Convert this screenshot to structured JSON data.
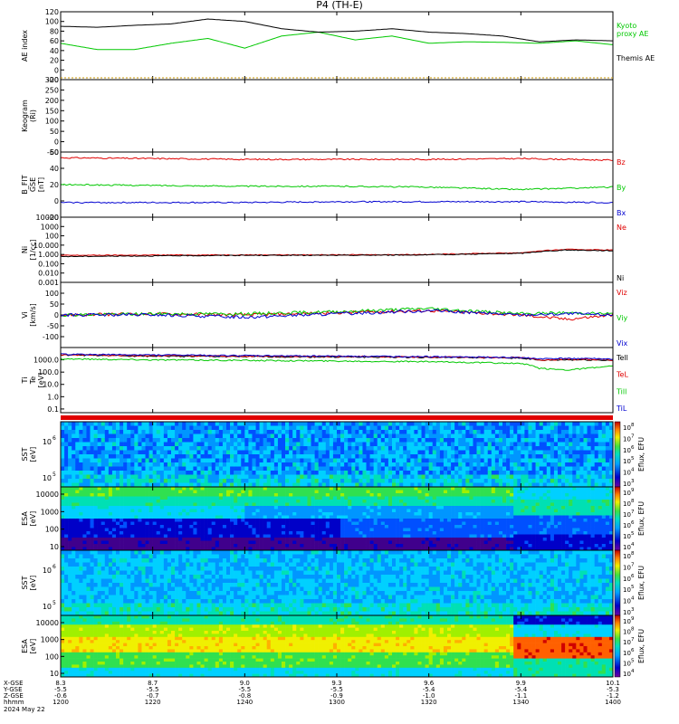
{
  "figure": {
    "title": "P4 (TH-E)",
    "date_label": "2024 May 22",
    "row_labels": [
      "X-GSE",
      "Y-GSE",
      "Z-GSE",
      "hhmm"
    ],
    "columns": [
      {
        "x": "8.3",
        "y": "-5.5",
        "z": "-0.6",
        "t": "1200"
      },
      {
        "x": "8.7",
        "y": "-5.5",
        "z": "-0.7",
        "t": "1220"
      },
      {
        "x": "9.0",
        "y": "-5.5",
        "z": "-0.8",
        "t": "1240"
      },
      {
        "x": "9.3",
        "y": "-5.5",
        "z": "-0.9",
        "t": "1300"
      },
      {
        "x": "9.6",
        "y": "-5.4",
        "z": "-1.0",
        "t": "1320"
      },
      {
        "x": "9.9",
        "y": "-5.4",
        "z": "-1.1",
        "t": "1340"
      },
      {
        "x": "10.1",
        "y": "-5.3",
        "z": "-1.2",
        "t": "1400"
      }
    ]
  },
  "chart_data": [
    {
      "type": "line",
      "ylabel": "AE index",
      "ylim": [
        -20,
        120
      ],
      "yticks": [
        "120",
        "100",
        "80",
        "60",
        "40",
        "20",
        "0",
        "-20"
      ],
      "x": [
        0,
        8,
        16,
        24,
        32,
        40,
        48,
        56,
        64,
        72,
        80,
        88,
        96,
        104,
        112,
        120
      ],
      "series": [
        {
          "name": "Kyoto proxy AE",
          "color": "#00c800",
          "values": [
            55,
            42,
            42,
            55,
            65,
            45,
            70,
            78,
            62,
            70,
            55,
            58,
            57,
            55,
            60,
            52
          ]
        },
        {
          "name": "Themis AE",
          "color": "#000000",
          "values": [
            90,
            88,
            92,
            95,
            105,
            100,
            85,
            78,
            80,
            85,
            78,
            75,
            70,
            58,
            62,
            60
          ]
        }
      ]
    },
    {
      "type": "line",
      "ylabel": "Keogram",
      "ylabel2": "(Ri)",
      "ylim": [
        -50,
        300
      ],
      "yticks": [
        "300",
        "250",
        "200",
        "150",
        "100",
        "50",
        "0",
        "-50"
      ],
      "series": []
    },
    {
      "type": "line",
      "ylabel": "B_FIT",
      "ylabel2": "GSE",
      "ylabel3": "[nT]",
      "ylim": [
        -20,
        60
      ],
      "yticks": [
        "60",
        "40",
        "20",
        "0",
        "-20"
      ],
      "x": [
        0,
        20,
        40,
        60,
        80,
        100,
        120
      ],
      "series": [
        {
          "name": "Bz",
          "color": "#e00000",
          "values": [
            53,
            52,
            51,
            51,
            51,
            52,
            50
          ]
        },
        {
          "name": "By",
          "color": "#00c800",
          "values": [
            20,
            19,
            18,
            18,
            17,
            14,
            17
          ]
        },
        {
          "name": "Bx",
          "color": "#0000d0",
          "values": [
            -2,
            -2,
            -2,
            -1,
            -1,
            -1,
            -2
          ]
        }
      ]
    },
    {
      "type": "line",
      "ylabel": "Ni",
      "ylabel2": "[1/cc]",
      "yscale": "log",
      "ylim": [
        0.001,
        10000
      ],
      "yticks": [
        "10000",
        "1000",
        "100",
        "10.000",
        "1.000",
        "0.100",
        "0.010",
        "0.001"
      ],
      "x": [
        0,
        20,
        40,
        60,
        80,
        100,
        110,
        120
      ],
      "series": [
        {
          "name": "Ne",
          "color": "#e00000",
          "values": [
            0.8,
            0.85,
            0.9,
            0.9,
            1.0,
            1.5,
            3.5,
            3.0
          ]
        },
        {
          "name": "Ni",
          "color": "#000000",
          "values": [
            0.6,
            0.7,
            0.8,
            0.8,
            0.9,
            1.3,
            3.0,
            2.5
          ]
        }
      ]
    },
    {
      "type": "line",
      "ylabel": "Vi",
      "ylabel2": "[km/s]",
      "ylim": [
        -150,
        150
      ],
      "yticks": [
        "100",
        "50",
        "0",
        "-50",
        "-100"
      ],
      "x": [
        0,
        20,
        40,
        60,
        80,
        100,
        110,
        120
      ],
      "series": [
        {
          "name": "Viz",
          "color": "#e00000",
          "values": [
            0,
            5,
            0,
            10,
            20,
            0,
            -20,
            0
          ]
        },
        {
          "name": "Viy",
          "color": "#00c800",
          "values": [
            0,
            5,
            5,
            15,
            30,
            5,
            10,
            5
          ]
        },
        {
          "name": "Vix",
          "color": "#0000d0",
          "values": [
            0,
            0,
            -10,
            5,
            20,
            0,
            5,
            0
          ]
        }
      ]
    },
    {
      "type": "line",
      "ylabel": "Ti",
      "ylabel2": "Te",
      "ylabel3": "[eV]",
      "yscale": "log",
      "ylim": [
        0.05,
        10000
      ],
      "yticks": [
        "1000.0",
        "100.0",
        "10.0",
        "1.0",
        "0.1"
      ],
      "x": [
        0,
        20,
        40,
        60,
        80,
        100,
        104,
        110,
        114,
        120
      ],
      "series": [
        {
          "name": "Tell",
          "color": "#000000",
          "values": [
            2500,
            2000,
            1800,
            1700,
            1600,
            1400,
            900,
            1000,
            1000,
            900
          ]
        },
        {
          "name": "TeL",
          "color": "#e00000",
          "values": [
            2600,
            2200,
            2000,
            1900,
            1700,
            1500,
            1000,
            1100,
            1100,
            1000
          ]
        },
        {
          "name": "Till",
          "color": "#00c800",
          "values": [
            1200,
            1000,
            900,
            800,
            700,
            500,
            200,
            150,
            200,
            300
          ]
        },
        {
          "name": "TiL",
          "color": "#0000d0",
          "values": [
            2800,
            2500,
            2200,
            2000,
            1800,
            1500,
            1200,
            1300,
            1300,
            1100
          ]
        }
      ]
    },
    {
      "type": "heatmap",
      "ylabel": "SST",
      "ylabel2": "[eV]",
      "ytick_sups": [
        "6",
        "5"
      ],
      "colorbar_label": "Eflux, EFU",
      "colorbar_sups": [
        "8",
        "7",
        "6",
        "5",
        "4",
        "3"
      ]
    },
    {
      "type": "heatmap",
      "ylabel": "ESA",
      "ylabel2": "[eV]",
      "yticks": [
        "10000",
        "1000",
        "100",
        "10"
      ],
      "colorbar_label": "Eflux, EFU",
      "colorbar_sups": [
        "9",
        "8",
        "7",
        "6",
        "5",
        "4"
      ]
    },
    {
      "type": "heatmap",
      "ylabel": "SST",
      "ylabel2": "[eV]",
      "ytick_sups": [
        "6",
        "5"
      ],
      "colorbar_label": "Eflux, EFU",
      "colorbar_sups": [
        "8",
        "7",
        "6",
        "5",
        "4",
        "3"
      ]
    },
    {
      "type": "heatmap",
      "ylabel": "ESA",
      "ylabel2": "[eV]",
      "yticks": [
        "10000",
        "1000",
        "100",
        "10"
      ],
      "colorbar_label": "Eflux, EFU",
      "colorbar_sups": [
        "9",
        "8",
        "7",
        "6",
        "5",
        "4"
      ]
    }
  ]
}
